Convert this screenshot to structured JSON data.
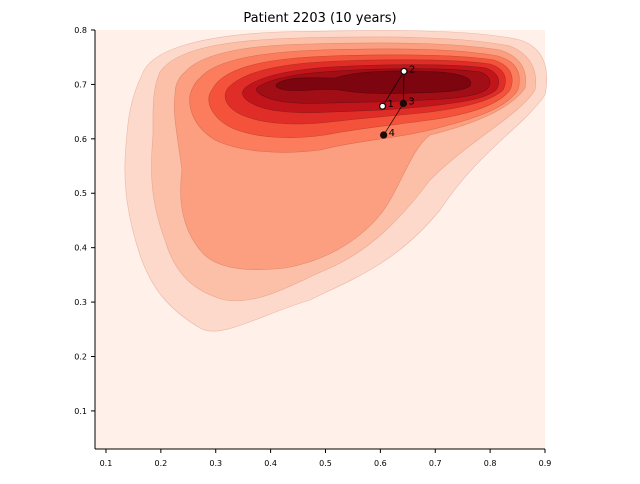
{
  "chart_data": {
    "type": "scatter",
    "title": "Patient 2203 (10 years)",
    "xlim": [
      0.08,
      0.9
    ],
    "ylim": [
      0.03,
      0.8
    ],
    "x_ticks": [
      "0.1",
      "0.2",
      "0.3",
      "0.4",
      "0.5",
      "0.6",
      "0.7",
      "0.8",
      "0.9"
    ],
    "y_ticks": [
      "0.1",
      "0.2",
      "0.3",
      "0.4",
      "0.5",
      "0.6",
      "0.7",
      "0.8"
    ],
    "background_density": "kernel density contours (filled, Reds colormap)",
    "grid": false,
    "legend": "none",
    "colors": {
      "base": "#fff0e9",
      "level1": "#fdd9cb",
      "level2": "#fcc0a8",
      "level3": "#fc9f80",
      "level4": "#fb7d5d",
      "level5": "#f4523a",
      "level6": "#e02d27",
      "level7": "#c1151b",
      "level8": "#a10e15",
      "level9": "#7c0510"
    },
    "points": [
      {
        "label": "1",
        "x": 0.604,
        "y": 0.66
      },
      {
        "label": "2",
        "x": 0.643,
        "y": 0.724
      },
      {
        "label": "3",
        "x": 0.642,
        "y": 0.665
      },
      {
        "label": "4",
        "x": 0.606,
        "y": 0.607
      }
    ]
  }
}
